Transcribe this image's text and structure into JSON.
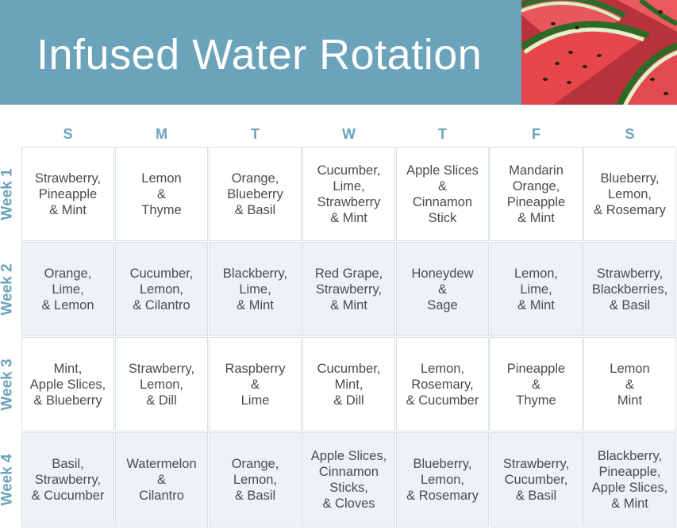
{
  "header": {
    "title": "Infused Water Rotation",
    "background_color": "#6ba3ba",
    "image": "watermelon-slices"
  },
  "days": [
    "S",
    "M",
    "T",
    "W",
    "T",
    "F",
    "S"
  ],
  "weeks": [
    {
      "label": "Week 1",
      "cells": [
        "Strawberry,\nPineapple\n& Mint",
        "Lemon\n&\nThyme",
        "Orange,\nBlueberry\n& Basil",
        "Cucumber,\nLime,\nStrawberry\n& Mint",
        "Apple Slices\n&\nCinnamon\nStick",
        "Mandarin\nOrange,\nPineapple\n& Mint",
        "Blueberry,\nLemon,\n& Rosemary"
      ]
    },
    {
      "label": "Week 2",
      "cells": [
        "Orange,\nLime,\n& Lemon",
        "Cucumber,\nLemon,\n& Cilantro",
        "Blackberry,\nLime,\n& Mint",
        "Red Grape,\nStrawberry,\n& Mint",
        "Honeydew\n&\nSage",
        "Lemon,\nLime,\n& Mint",
        "Strawberry,\nBlackberries,\n& Basil"
      ]
    },
    {
      "label": "Week 3",
      "cells": [
        "Mint,\nApple Slices,\n& Blueberry",
        "Strawberry,\nLemon,\n& Dill",
        "Raspberry\n&\nLime",
        "Cucumber,\nMint,\n& Dill",
        "Lemon,\nRosemary,\n& Cucumber",
        "Pineapple\n&\nThyme",
        "Lemon\n&\nMint"
      ]
    },
    {
      "label": "Week 4",
      "cells": [
        "Basil,\nStrawberry,\n& Cucumber",
        "Watermelon\n&\nCilantro",
        "Orange,\nLemon,\n& Basil",
        "Apple Slices,\nCinnamon\nSticks,\n& Cloves",
        "Blueberry,\nLemon,\n& Rosemary",
        "Strawberry,\nCucumber,\n& Basil",
        "Blackberry,\nPineapple,\nApple Slices,\n& Mint"
      ]
    }
  ],
  "colors": {
    "accent": "#6ba3ba",
    "shaded_row": "#edf2f5",
    "cell_border": "#d6e1e6",
    "text": "#4b4b4b"
  }
}
